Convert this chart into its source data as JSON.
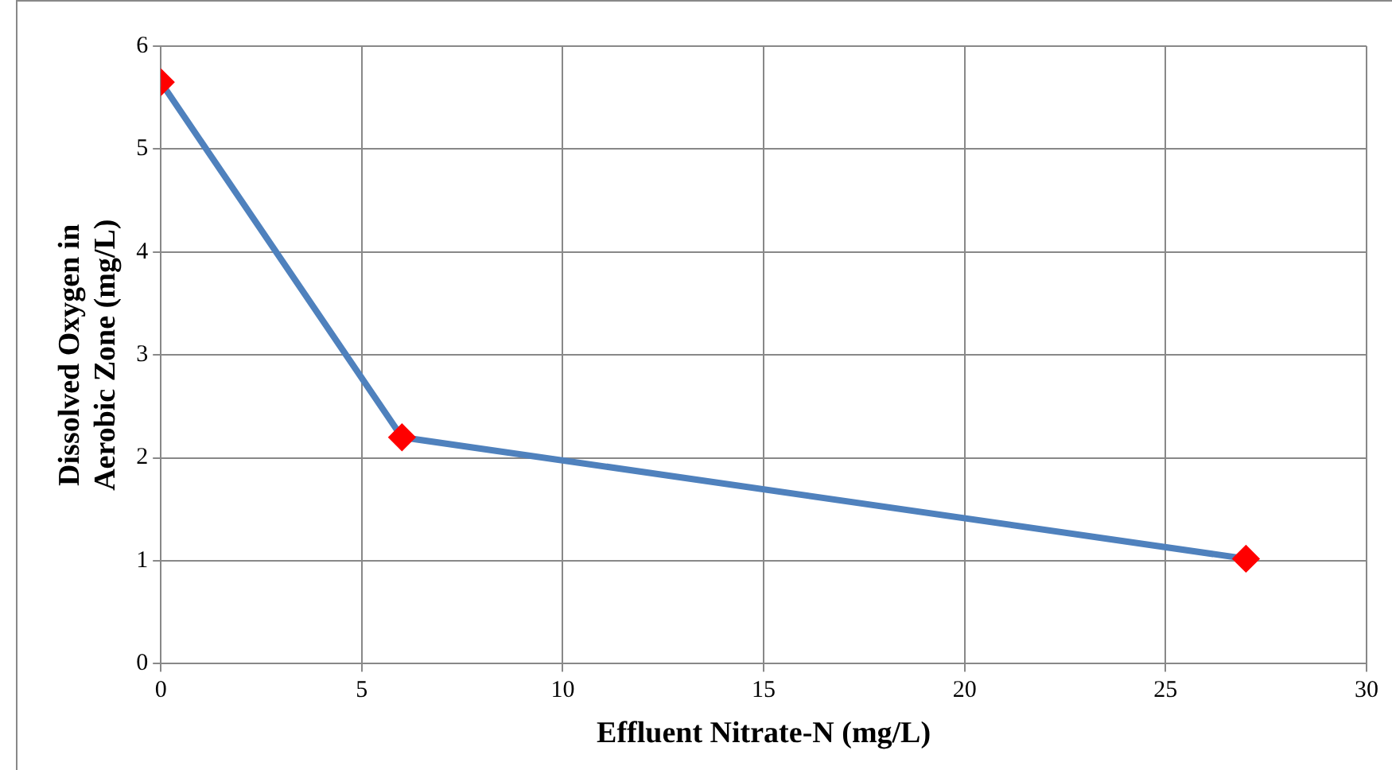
{
  "chart_data": {
    "type": "line",
    "xlabel": "Effluent Nitrate-N (mg/L)",
    "ylabel": "Dissolved Oxygen in\nAerobic Zone (mg/L)",
    "x": [
      0,
      6,
      27
    ],
    "series": [
      {
        "color": "#4f81bd",
        "colors": [
          "#ff0000",
          "#ff0000",
          "#ff0000"
        ],
        "values": [
          5.65,
          2.2,
          1.02
        ]
      }
    ],
    "xlim": [
      0,
      30
    ],
    "xticks": [
      0,
      5,
      10,
      15,
      20,
      25,
      30
    ],
    "ylim": [
      0,
      6
    ],
    "yticks": [
      0,
      1,
      2,
      3,
      4,
      5,
      6
    ],
    "grid": true,
    "legend": false,
    "marker": "diamond",
    "line_style": "solid"
  }
}
